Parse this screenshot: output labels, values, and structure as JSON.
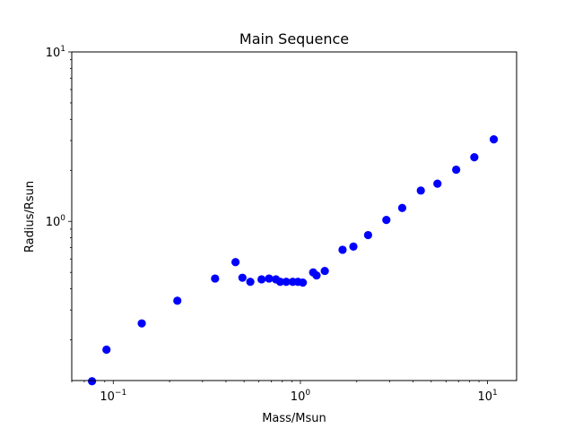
{
  "chart_data": {
    "type": "scatter",
    "title": "Main Sequence",
    "xlabel": "Mass/Msun",
    "ylabel": "Radius/Rsun",
    "x_scale": "log",
    "y_scale": "log",
    "xlim": [
      0.06,
      14.3
    ],
    "ylim": [
      0.115,
      10
    ],
    "marker_color": "#0000ff",
    "grid": false,
    "x_major_ticks": [
      {
        "value": 0.1,
        "base": "10",
        "exp": "−1"
      },
      {
        "value": 1,
        "base": "10",
        "exp": "0"
      },
      {
        "value": 10,
        "base": "10",
        "exp": "1"
      }
    ],
    "y_major_ticks": [
      {
        "value": 1,
        "base": "10",
        "exp": "0"
      },
      {
        "value": 10,
        "base": "10",
        "exp": "1"
      }
    ],
    "x": [
      0.077,
      0.092,
      0.142,
      0.22,
      0.35,
      0.45,
      0.49,
      0.54,
      0.62,
      0.68,
      0.74,
      0.78,
      0.84,
      0.91,
      0.97,
      1.03,
      1.17,
      1.22,
      1.35,
      1.68,
      1.92,
      2.3,
      2.88,
      3.5,
      4.4,
      5.4,
      6.8,
      8.5,
      10.8
    ],
    "y": [
      0.114,
      0.175,
      0.25,
      0.34,
      0.46,
      0.575,
      0.465,
      0.44,
      0.455,
      0.46,
      0.455,
      0.44,
      0.44,
      0.44,
      0.44,
      0.435,
      0.5,
      0.48,
      0.51,
      0.68,
      0.71,
      0.83,
      1.02,
      1.2,
      1.52,
      1.67,
      2.02,
      2.39,
      3.05
    ]
  }
}
